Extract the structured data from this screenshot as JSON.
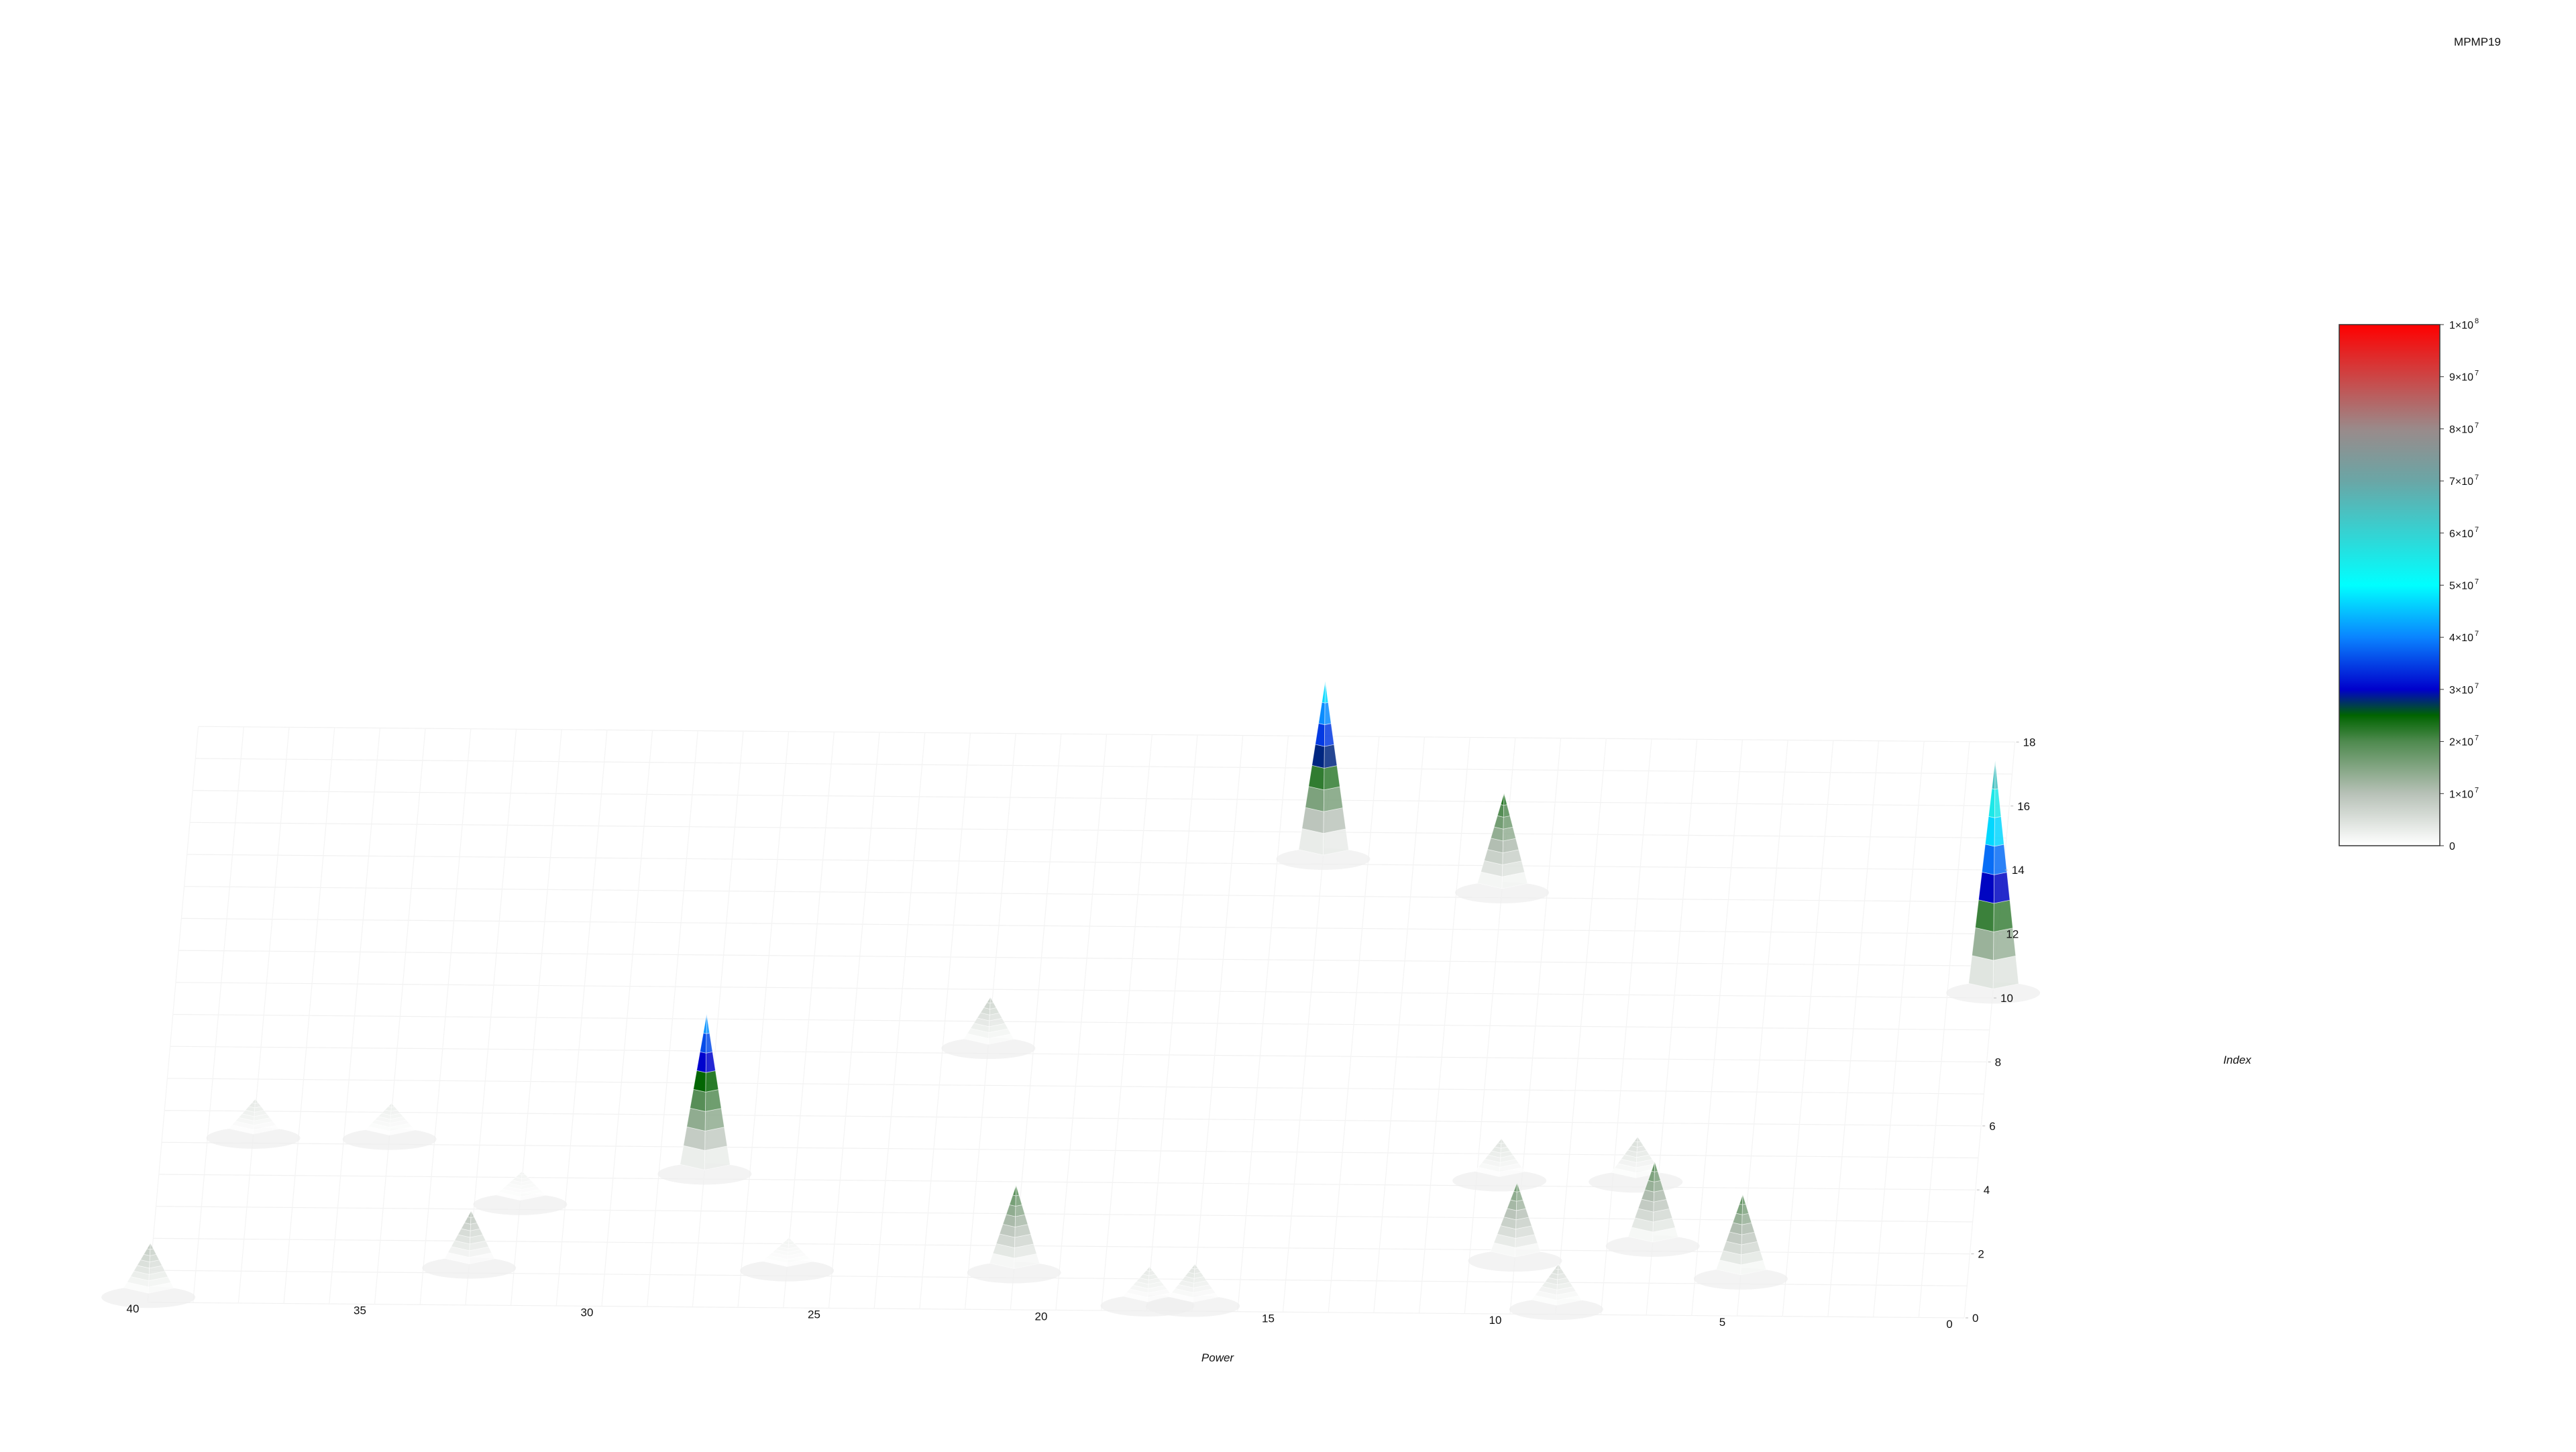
{
  "chart_data": {
    "type": "surface",
    "title": "MPMP19",
    "xlabel": "Power",
    "ylabel": "Index",
    "x_ticks": [
      "0",
      "5",
      "10",
      "15",
      "20",
      "25",
      "30",
      "35",
      "40"
    ],
    "y_ticks": [
      "0",
      "2",
      "4",
      "6",
      "8",
      "10",
      "12",
      "14",
      "16",
      "18"
    ],
    "xlim": [
      0,
      40
    ],
    "ylim": [
      0,
      18
    ],
    "colorbar": {
      "ticks": [
        "0",
        "1×10",
        "2×10",
        "3×10",
        "4×10",
        "5×10",
        "6×10",
        "7×10",
        "8×10",
        "9×10",
        "1×10"
      ],
      "exponents": [
        "",
        "7",
        "7",
        "7",
        "7",
        "7",
        "7",
        "7",
        "7",
        "7",
        "8"
      ],
      "range": [
        0,
        100000000
      ],
      "stops": [
        {
          "value": 0,
          "color": "#ffffff"
        },
        {
          "value": 10000000,
          "color": "#b7c1b7"
        },
        {
          "value": 20000000,
          "color": "#4f8a4f"
        },
        {
          "value": 25000000,
          "color": "#006400"
        },
        {
          "value": 30000000,
          "color": "#0000cc"
        },
        {
          "value": 40000000,
          "color": "#0a84ff"
        },
        {
          "value": 50000000,
          "color": "#00ffff"
        },
        {
          "value": 70000000,
          "color": "#6aa6a6"
        },
        {
          "value": 80000000,
          "color": "#9a8a8a"
        },
        {
          "value": 100000000,
          "color": "#ff0000"
        }
      ]
    },
    "peaks": [
      {
        "x": 0,
        "y": 11,
        "z": 68000000
      },
      {
        "x": 5,
        "y": 2,
        "z": 19000000
      },
      {
        "x": 7,
        "y": 3,
        "z": 19000000
      },
      {
        "x": 7.5,
        "y": 5,
        "z": 6000000
      },
      {
        "x": 9,
        "y": 1,
        "z": 6000000
      },
      {
        "x": 10,
        "y": 2.5,
        "z": 17000000
      },
      {
        "x": 10.5,
        "y": 5,
        "z": 5000000
      },
      {
        "x": 11,
        "y": 14,
        "z": 24000000
      },
      {
        "x": 15,
        "y": 15,
        "z": 50000000
      },
      {
        "x": 17,
        "y": 1,
        "z": 5000000
      },
      {
        "x": 18,
        "y": 1,
        "z": 4000000
      },
      {
        "x": 21,
        "y": 2,
        "z": 20000000
      },
      {
        "x": 22,
        "y": 9,
        "z": 8000000
      },
      {
        "x": 26,
        "y": 2,
        "z": 2000000
      },
      {
        "x": 28,
        "y": 5,
        "z": 44000000
      },
      {
        "x": 32,
        "y": 4,
        "z": 2000000
      },
      {
        "x": 33,
        "y": 2,
        "z": 10000000
      },
      {
        "x": 35,
        "y": 6,
        "z": 3000000
      },
      {
        "x": 38,
        "y": 6,
        "z": 4000000
      },
      {
        "x": 40,
        "y": 1,
        "z": 9000000
      }
    ]
  }
}
